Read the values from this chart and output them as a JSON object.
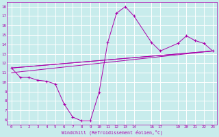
{
  "xlabel": "Windchill (Refroidissement éolien,°C)",
  "bg_color": "#c8ecec",
  "line_color": "#aa00aa",
  "grid_color": "#ffffff",
  "series_main": [
    [
      0,
      11.5
    ],
    [
      1,
      10.5
    ],
    [
      2,
      10.5
    ],
    [
      3,
      10.2
    ],
    [
      4,
      10.1
    ],
    [
      5,
      9.8
    ],
    [
      6,
      7.7
    ],
    [
      7,
      6.3
    ],
    [
      8,
      5.9
    ],
    [
      9,
      5.9
    ],
    [
      10,
      8.9
    ],
    [
      11,
      14.2
    ],
    [
      12,
      17.3
    ],
    [
      13,
      18.0
    ],
    [
      14,
      17.0
    ],
    [
      16,
      14.2
    ],
    [
      17,
      13.3
    ],
    [
      19,
      14.1
    ],
    [
      20,
      14.9
    ],
    [
      21,
      14.4
    ],
    [
      22,
      14.1
    ],
    [
      23,
      13.3
    ]
  ],
  "series_linear1": [
    [
      0,
      11.5
    ],
    [
      23,
      13.3
    ]
  ],
  "series_linear2": [
    [
      0,
      11.5
    ],
    [
      23,
      13.3
    ]
  ],
  "series_linear3": [
    [
      0,
      11.0
    ],
    [
      23,
      13.3
    ]
  ],
  "xlim": [
    -0.5,
    23.5
  ],
  "ylim": [
    5.5,
    18.5
  ],
  "xticks": [
    0,
    1,
    2,
    3,
    4,
    5,
    6,
    7,
    8,
    9,
    10,
    11,
    12,
    13,
    14,
    16,
    17,
    19,
    20,
    21,
    22,
    23
  ],
  "yticks": [
    6,
    7,
    8,
    9,
    10,
    11,
    12,
    13,
    14,
    15,
    16,
    17,
    18
  ],
  "figsize": [
    3.2,
    2.0
  ],
  "dpi": 100
}
